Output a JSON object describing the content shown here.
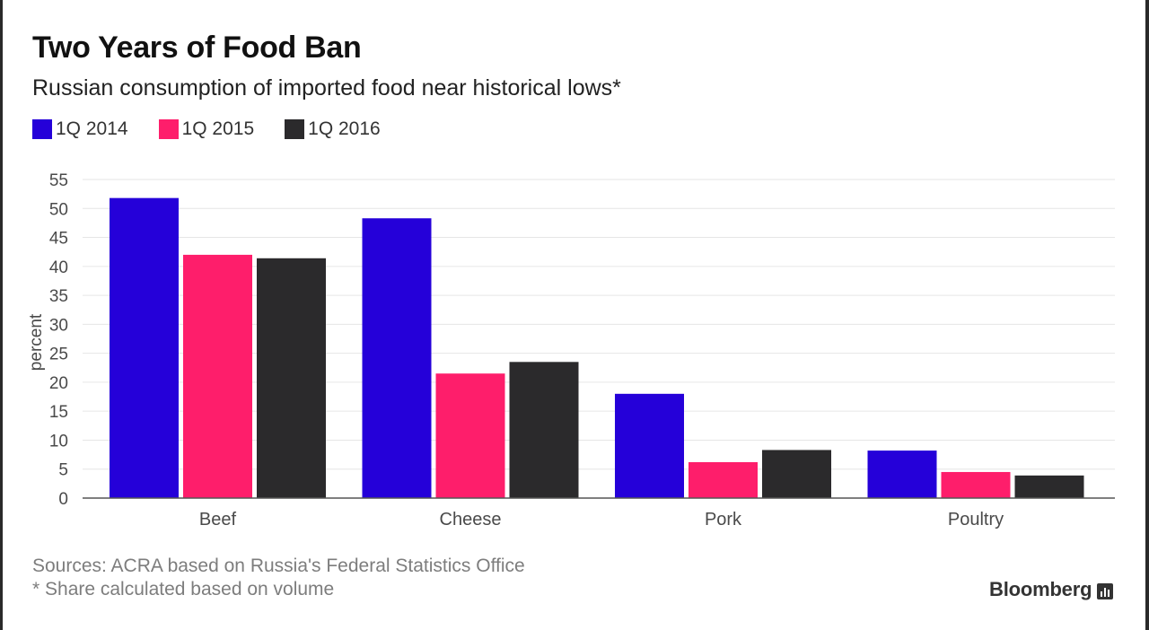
{
  "header": {
    "title": "Two Years of Food Ban",
    "subtitle": "Russian consumption of imported food near historical lows*"
  },
  "footer": {
    "source": "Sources: ACRA based on Russia's Federal Statistics Office",
    "note": "* Share calculated based on volume",
    "brand": "Bloomberg",
    "brand_icon": "bloomberg-chart-icon"
  },
  "colors": {
    "series": [
      "#2500d9",
      "#fe1e6b",
      "#2b2a2c"
    ],
    "grid": "#e6e6e6",
    "axis": "#555555",
    "text": "#4a4a4a"
  },
  "chart_data": {
    "type": "bar",
    "title": "Two Years of Food Ban",
    "subtitle": "Russian consumption of imported food near historical lows*",
    "xlabel": "",
    "ylabel": "percent",
    "ylim": [
      0,
      55
    ],
    "yticks": [
      0,
      5,
      10,
      15,
      20,
      25,
      30,
      35,
      40,
      45,
      50,
      55
    ],
    "grid": true,
    "legend_position": "top-left",
    "categories": [
      "Beef",
      "Cheese",
      "Pork",
      "Poultry"
    ],
    "series": [
      {
        "name": "1Q 2014",
        "color": "#2500d9",
        "values": [
          51.8,
          48.3,
          18.0,
          8.2
        ]
      },
      {
        "name": "1Q 2015",
        "color": "#fe1e6b",
        "values": [
          42.0,
          21.5,
          6.2,
          4.5
        ]
      },
      {
        "name": "1Q 2016",
        "color": "#2b2a2c",
        "values": [
          41.4,
          23.5,
          8.3,
          3.9
        ]
      }
    ]
  }
}
